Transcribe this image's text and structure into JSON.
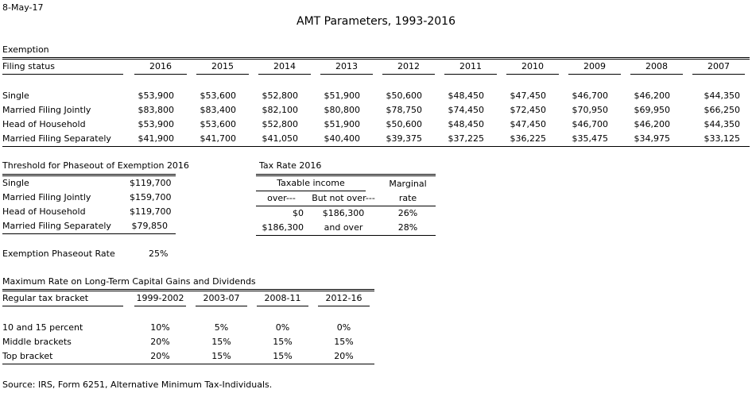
{
  "date": "8-May-17",
  "title": "AMT Parameters, 1993-2016",
  "exemption": {
    "section": "Exemption",
    "header": "Filing status",
    "years": [
      "2016",
      "2015",
      "2014",
      "2013",
      "2012",
      "2011",
      "2010",
      "2009",
      "2008",
      "2007"
    ],
    "rows": [
      {
        "label": "Single",
        "values": [
          "$53,900",
          "$53,600",
          "$52,800",
          "$51,900",
          "$50,600",
          "$48,450",
          "$47,450",
          "$46,700",
          "$46,200",
          "$44,350"
        ]
      },
      {
        "label": "Married Filing Jointly",
        "values": [
          "$83,800",
          "$83,400",
          "$82,100",
          "$80,800",
          "$78,750",
          "$74,450",
          "$72,450",
          "$70,950",
          "$69,950",
          "$66,250"
        ]
      },
      {
        "label": "Head of Household",
        "values": [
          "$53,900",
          "$53,600",
          "$52,800",
          "$51,900",
          "$50,600",
          "$48,450",
          "$47,450",
          "$46,700",
          "$46,200",
          "$44,350"
        ]
      },
      {
        "label": "Married Filing Separately",
        "values": [
          "$41,900",
          "$41,700",
          "$41,050",
          "$40,400",
          "$39,375",
          "$37,225",
          "$36,225",
          "$35,475",
          "$34,975",
          "$33,125"
        ]
      }
    ]
  },
  "threshold": {
    "title": "Threshold for Phaseout of Exemption 2016",
    "rows": [
      {
        "label": "Single",
        "value": "$119,700"
      },
      {
        "label": "Married Filing Jointly",
        "value": "$159,700"
      },
      {
        "label": "Head of Household",
        "value": "$119,700"
      },
      {
        "label": "Married Filing Separately",
        "value": "$79,850"
      }
    ]
  },
  "tax_rate": {
    "title": "Tax Rate 2016",
    "h_taxable": "Taxable income",
    "h_marginal": "Marginal",
    "h_over": "over---",
    "h_not_over": "But not over---",
    "h_rate": "rate",
    "rows": [
      {
        "over": "$0",
        "not_over": "$186,300",
        "rate": "26%"
      },
      {
        "over": "$186,300",
        "not_over": "and over",
        "rate": "28%"
      }
    ]
  },
  "phaseout": {
    "label": "Exemption Phaseout Rate",
    "value": "25%"
  },
  "capgains": {
    "title": "Maximum Rate on Long-Term Capital Gains and Dividends",
    "header": "Regular tax bracket",
    "periods": [
      "1999-2002",
      "2003-07",
      "2008-11",
      "2012-16"
    ],
    "rows": [
      {
        "label": "10 and 15 percent",
        "values": [
          "10%",
          "5%",
          "0%",
          "0%"
        ]
      },
      {
        "label": "Middle brackets",
        "values": [
          "20%",
          "15%",
          "15%",
          "15%"
        ]
      },
      {
        "label": "Top bracket",
        "values": [
          "20%",
          "15%",
          "15%",
          "20%"
        ]
      }
    ]
  },
  "source": "Source: IRS, Form 6251, Alternative Minimum Tax-Individuals."
}
